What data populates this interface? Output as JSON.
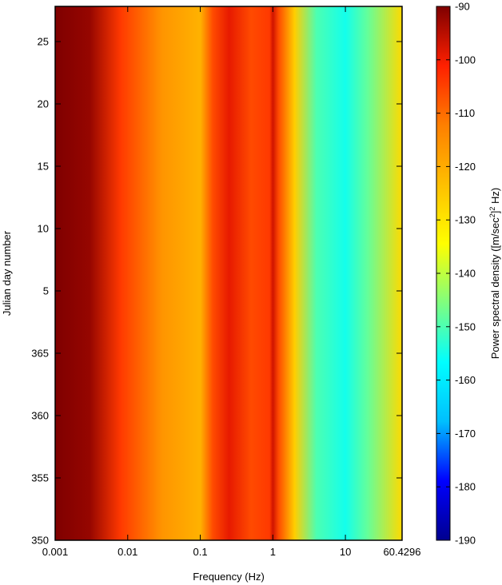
{
  "chart_data": {
    "type": "heatmap",
    "xlabel": "Frequency (Hz)",
    "ylabel": "Julian day number",
    "colorbar_label_parts": [
      "Power spectral density ([m/sec",
      "2",
      "]",
      "2",
      " Hz)"
    ],
    "x_scale": "log",
    "xlim": [
      0.001,
      60.4296
    ],
    "x_ticks": [
      {
        "value": 0.001,
        "label": "0.001"
      },
      {
        "value": 0.01,
        "label": "0.01"
      },
      {
        "value": 0.1,
        "label": "0.1"
      },
      {
        "value": 1,
        "label": "1"
      },
      {
        "value": 10,
        "label": "10"
      },
      {
        "value": 60.4296,
        "label": "60.4296"
      }
    ],
    "y_ticks": [
      "350",
      "355",
      "360",
      "365",
      "5",
      "10",
      "15",
      "20",
      "25"
    ],
    "colorbar_ticks": [
      "-90",
      "-100",
      "-110",
      "-120",
      "-130",
      "-140",
      "-150",
      "-160",
      "-170",
      "-180",
      "-190"
    ],
    "colorbar_range": [
      -190,
      -90
    ],
    "colormap": [
      "#00008f",
      "#0000ff",
      "#00bfff",
      "#00ffff",
      "#7fff7f",
      "#ffff00",
      "#ffbf00",
      "#ff7f00",
      "#ff2000",
      "#7f0000"
    ],
    "spectrum_profile": [
      {
        "freq": 0.001,
        "psd": -90
      },
      {
        "freq": 0.003,
        "psd": -92
      },
      {
        "freq": 0.008,
        "psd": -104
      },
      {
        "freq": 0.03,
        "psd": -116
      },
      {
        "freq": 0.1,
        "psd": -121
      },
      {
        "freq": 0.15,
        "psd": -106
      },
      {
        "freq": 0.25,
        "psd": -99
      },
      {
        "freq": 0.5,
        "psd": -106
      },
      {
        "freq": 0.9,
        "psd": -104
      },
      {
        "freq": 1.0,
        "psd": -97
      },
      {
        "freq": 1.2,
        "psd": -106
      },
      {
        "freq": 2.0,
        "psd": -126
      },
      {
        "freq": 4.0,
        "psd": -150
      },
      {
        "freq": 10.0,
        "psd": -155
      },
      {
        "freq": 20.0,
        "psd": -148
      },
      {
        "freq": 60.4296,
        "psd": -128
      }
    ]
  }
}
